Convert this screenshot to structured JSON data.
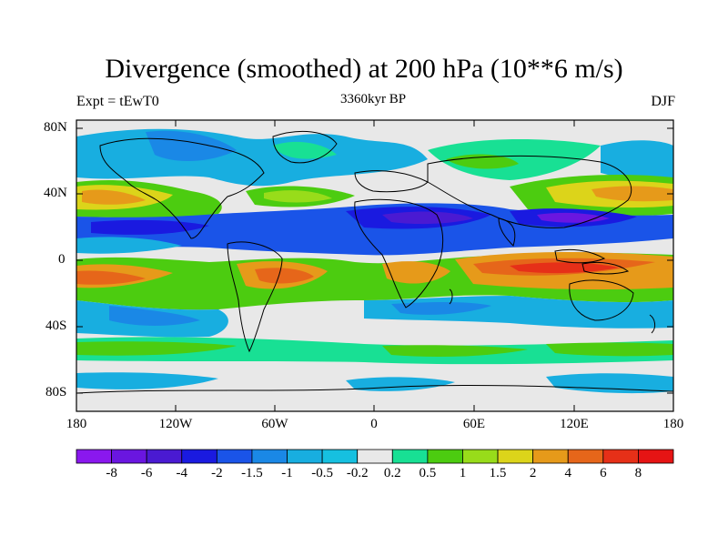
{
  "map": {
    "title": "Divergence (smoothed) at 200 hPa (10**6 m/s)",
    "left_label": "Expt = tEwT0",
    "center_label": "3360kyr BP",
    "right_label": "DJF",
    "lat_ticks": [
      "80N",
      "40N",
      "0",
      "40S",
      "80S"
    ],
    "lon_ticks": [
      "180",
      "120W",
      "60W",
      "0",
      "60E",
      "120E",
      "180"
    ],
    "colorbar": {
      "labels": [
        "-8",
        "-6",
        "-4",
        "-2",
        "-1.5",
        "-1",
        "-0.5",
        "-0.2",
        "0.2",
        "0.5",
        "1",
        "1.5",
        "2",
        "4",
        "6",
        "8"
      ],
      "colors": [
        "#8a18ee",
        "#6a16e0",
        "#4a1ad2",
        "#1a1ae0",
        "#1a54e8",
        "#1a88e6",
        "#18aee0",
        "#16c0e0",
        "#e8e8e8",
        "#18e094",
        "#4ccc10",
        "#98dc1a",
        "#dcd41a",
        "#e69a1a",
        "#e6661a",
        "#e63018",
        "#e61414"
      ]
    }
  }
}
